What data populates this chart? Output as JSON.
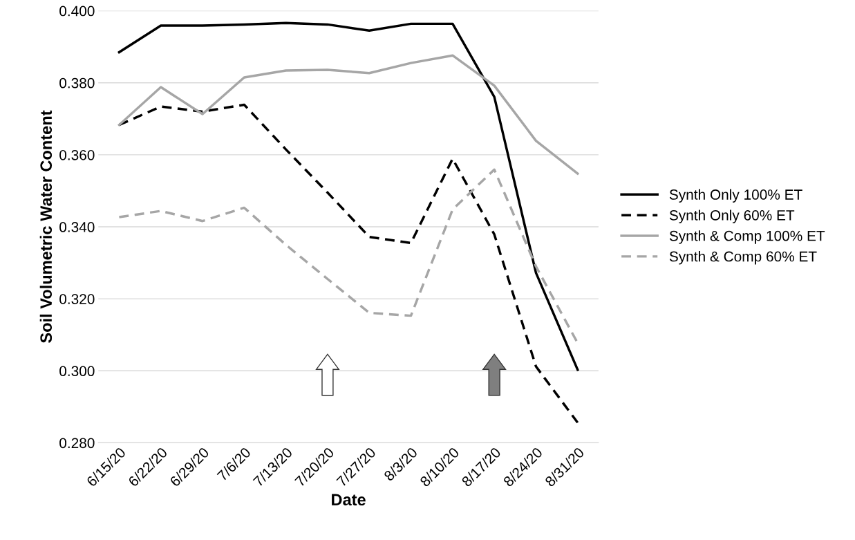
{
  "chart_data": {
    "type": "line",
    "xlabel": "Date",
    "ylabel": "Soil Volumetric Water Content",
    "categories": [
      "6/15/20",
      "6/22/20",
      "6/29/20",
      "7/6/20",
      "7/13/20",
      "7/20/20",
      "7/27/20",
      "8/3/20",
      "8/10/20",
      "8/17/20",
      "8/24/20",
      "8/31/20"
    ],
    "series": [
      {
        "name": "Synth Only 100% ET",
        "color": "#000000",
        "line_style": "solid",
        "values": [
          0.3885,
          0.3959,
          0.3959,
          0.3962,
          0.3966,
          0.3962,
          0.3945,
          0.3964,
          0.3964,
          0.3761,
          0.3272,
          0.3003
        ]
      },
      {
        "name": "Synth Only 60% ET",
        "color": "#000000",
        "line_style": "dashed",
        "values": [
          0.3683,
          0.3734,
          0.372,
          0.3739,
          0.3615,
          0.3495,
          0.3372,
          0.3355,
          0.3589,
          0.3379,
          0.3012,
          0.2856
        ]
      },
      {
        "name": "Synth & Comp 100% ET",
        "color": "#a6a6a6",
        "line_style": "solid",
        "values": [
          0.3683,
          0.3788,
          0.3713,
          0.3815,
          0.3834,
          0.3836,
          0.3827,
          0.3855,
          0.3876,
          0.3792,
          0.3639,
          0.3548
        ]
      },
      {
        "name": "Synth & Comp 60% ET",
        "color": "#a6a6a6",
        "line_style": "dashed",
        "values": [
          0.3427,
          0.3444,
          0.3416,
          0.3453,
          0.335,
          0.3255,
          0.3161,
          0.3153,
          0.3448,
          0.3559,
          0.329,
          0.3077
        ]
      }
    ],
    "ylim": [
      0.28,
      0.4
    ],
    "yticks": [
      {
        "value": 0.28,
        "label": "0.280"
      },
      {
        "value": 0.3,
        "label": "0.300"
      },
      {
        "value": 0.32,
        "label": "0.320"
      },
      {
        "value": 0.34,
        "label": "0.340"
      },
      {
        "value": 0.36,
        "label": "0.360"
      },
      {
        "value": 0.38,
        "label": "0.380"
      },
      {
        "value": 0.4,
        "label": "0.400"
      }
    ],
    "grid": "y",
    "legend": "right",
    "marker": "none"
  }
}
